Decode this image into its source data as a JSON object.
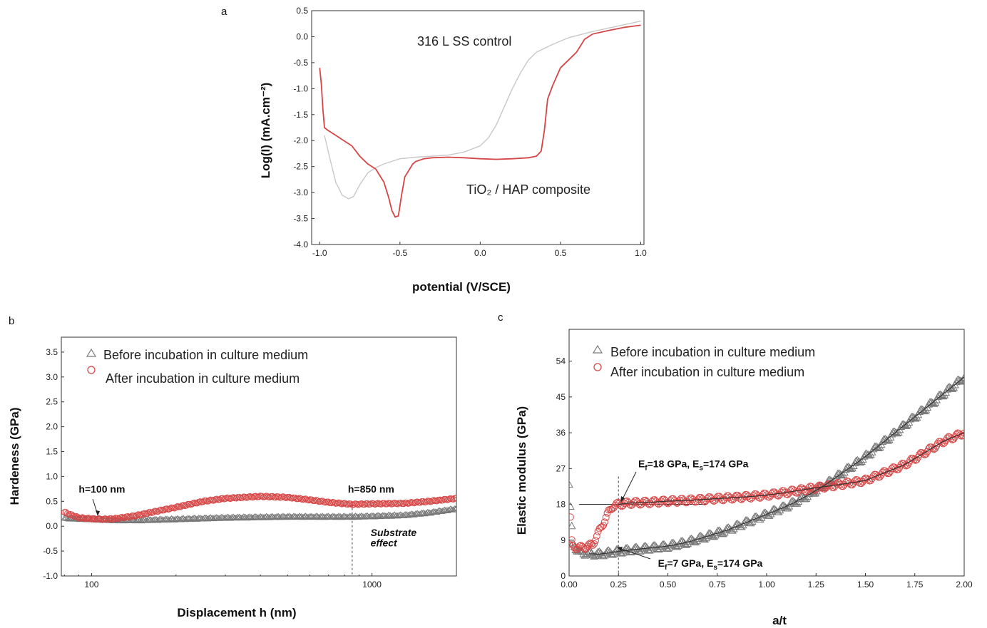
{
  "chart_data": [
    {
      "panel_label": "a",
      "type": "line",
      "xlabel": "potential (V/SCE)",
      "ylabel": "Log(I) (mA.cm⁻²)",
      "xlim": [
        -1.05,
        1.02
      ],
      "ylim": [
        -4.0,
        0.5
      ],
      "xticks": [
        -1.0,
        -0.5,
        0.0,
        0.5,
        1.0
      ],
      "xtick_labels": [
        "-1.0",
        "-0.5",
        "0.0",
        "0.5",
        "1.0"
      ],
      "yticks": [
        -4.0,
        -3.5,
        -3.0,
        -2.5,
        -2.0,
        -1.5,
        -1.0,
        -0.5,
        0.0,
        0.5
      ],
      "ytick_labels": [
        "-4.0",
        "-3.5",
        "-3.0",
        "-2.5",
        "-2.0",
        "-1.5",
        "-1.0",
        "-0.5",
        "0.0",
        "0.5"
      ],
      "annotations": [
        {
          "text": "316 L SS control",
          "x": -0.37,
          "y": -0.05
        },
        {
          "text": "TiO₂ / HAP composite",
          "x": -0.1,
          "y": -2.95
        }
      ],
      "series": [
        {
          "name": "316 L SS control",
          "color": "#c8c8c8",
          "x": [
            -0.97,
            -0.94,
            -0.9,
            -0.86,
            -0.82,
            -0.79,
            -0.75,
            -0.7,
            -0.65,
            -0.6,
            -0.5,
            -0.4,
            -0.3,
            -0.2,
            -0.1,
            0.0,
            0.05,
            0.1,
            0.15,
            0.2,
            0.25,
            0.3,
            0.35,
            0.45,
            0.55,
            0.7,
            0.85,
            1.0
          ],
          "y": [
            -1.9,
            -2.3,
            -2.8,
            -3.05,
            -3.12,
            -3.08,
            -2.85,
            -2.62,
            -2.52,
            -2.45,
            -2.35,
            -2.32,
            -2.3,
            -2.28,
            -2.22,
            -2.1,
            -1.95,
            -1.7,
            -1.35,
            -1.0,
            -0.7,
            -0.45,
            -0.3,
            -0.15,
            -0.02,
            0.1,
            0.2,
            0.3
          ]
        },
        {
          "name": "TiO₂ / HAP composite",
          "color": "#d64545",
          "x": [
            -1.0,
            -0.99,
            -0.98,
            -0.97,
            -0.95,
            -0.9,
            -0.85,
            -0.8,
            -0.75,
            -0.7,
            -0.65,
            -0.6,
            -0.57,
            -0.55,
            -0.53,
            -0.51,
            -0.49,
            -0.47,
            -0.45,
            -0.42,
            -0.4,
            -0.35,
            -0.3,
            -0.2,
            -0.1,
            0.0,
            0.1,
            0.2,
            0.3,
            0.35,
            0.38,
            0.4,
            0.42,
            0.45,
            0.5,
            0.55,
            0.6,
            0.65,
            0.7,
            0.8,
            0.9,
            1.0
          ],
          "y": [
            -0.6,
            -0.9,
            -1.4,
            -1.75,
            -1.8,
            -1.9,
            -2.0,
            -2.1,
            -2.3,
            -2.45,
            -2.55,
            -2.8,
            -3.1,
            -3.35,
            -3.47,
            -3.45,
            -3.05,
            -2.7,
            -2.6,
            -2.45,
            -2.4,
            -2.35,
            -2.33,
            -2.32,
            -2.33,
            -2.35,
            -2.36,
            -2.35,
            -2.33,
            -2.3,
            -2.2,
            -1.8,
            -1.2,
            -0.95,
            -0.6,
            -0.45,
            -0.3,
            -0.05,
            0.05,
            0.12,
            0.18,
            0.22
          ]
        }
      ]
    },
    {
      "panel_label": "b",
      "type": "scatter",
      "xlabel": "Displacement h (nm)",
      "ylabel": "Hardeness (GPa)",
      "xscale": "log",
      "xlim": [
        78,
        2000
      ],
      "ylim": [
        -1.0,
        3.8
      ],
      "xticks": [
        100,
        1000
      ],
      "xtick_labels": [
        "100",
        "1000"
      ],
      "yticks": [
        -1.0,
        -0.5,
        0.0,
        0.5,
        1.0,
        1.5,
        2.0,
        2.5,
        3.0,
        3.5
      ],
      "ytick_labels": [
        "-1.0",
        "-0.5",
        "0.0",
        "0.5",
        "1.0",
        "1.5",
        "2.0",
        "2.5",
        "3.0",
        "3.5"
      ],
      "legend_placement": "top-left",
      "annotations": [
        {
          "text": "h=100 nm",
          "x": 100,
          "y": 0.68,
          "style": "bold"
        },
        {
          "text": "h=850 nm",
          "x": 860,
          "y": 0.68,
          "style": "bold"
        },
        {
          "text": "Substrate",
          "x": 1000,
          "y": -0.2,
          "style": "bold-italic"
        },
        {
          "text": "effect",
          "x": 1000,
          "y": -0.52,
          "style": "bold-italic"
        }
      ],
      "vlines": [
        850
      ],
      "series": [
        {
          "name": "Before incubation in culture medium",
          "marker": "triangle",
          "color": "#777777",
          "x": [
            80,
            90,
            100,
            120,
            150,
            200,
            300,
            500,
            700,
            850,
            1000,
            1300,
            1600,
            2000
          ],
          "y": [
            0.16,
            0.15,
            0.14,
            0.12,
            0.12,
            0.14,
            0.17,
            0.19,
            0.19,
            0.19,
            0.2,
            0.22,
            0.27,
            0.35
          ]
        },
        {
          "name": "After incubation in culture medium",
          "marker": "circle",
          "color": "#d64545",
          "x": [
            80,
            90,
            100,
            110,
            120,
            140,
            170,
            200,
            250,
            300,
            400,
            500,
            600,
            700,
            850,
            1000,
            1300,
            1600,
            2000
          ],
          "y": [
            0.28,
            0.17,
            0.15,
            0.14,
            0.15,
            0.2,
            0.3,
            0.38,
            0.5,
            0.56,
            0.6,
            0.58,
            0.53,
            0.48,
            0.44,
            0.45,
            0.46,
            0.5,
            0.56
          ]
        }
      ]
    },
    {
      "panel_label": "c",
      "type": "scatter",
      "xlabel": "a/t",
      "ylabel": "Elastic modulus (GPa)",
      "xlim": [
        0.0,
        2.0
      ],
      "ylim": [
        0,
        62
      ],
      "xticks": [
        0.0,
        0.25,
        0.5,
        0.75,
        1.0,
        1.25,
        1.5,
        1.75,
        2.0
      ],
      "xtick_labels": [
        "0.00",
        "0.25",
        "0.50",
        "0.75",
        "1.00",
        "1.25",
        "1.50",
        "1.75",
        "2.00"
      ],
      "yticks": [
        0,
        9,
        18,
        27,
        36,
        45,
        54
      ],
      "ytick_labels": [
        "0",
        "9",
        "18",
        "27",
        "36",
        "45",
        "54"
      ],
      "legend_placement": "top-left",
      "vlines": [
        0.25
      ],
      "hlines": [
        18
      ],
      "annotations": [
        {
          "text_main": "E",
          "sub1": "f",
          "text_mid": "=18 GPa, E",
          "sub2": "s",
          "text_end": "=174 GPa",
          "x": 0.35,
          "y": 27.3
        },
        {
          "text_main": "E",
          "sub1": "f",
          "text_mid": "=7 GPa, E",
          "sub2": "s",
          "text_end": "=174 GPa",
          "x": 0.45,
          "y": 2.3
        }
      ],
      "series": [
        {
          "name": "Before incubation in culture medium",
          "marker": "triangle",
          "color": "#777777",
          "x": [
            0.0,
            0.01,
            0.02,
            0.05,
            0.1,
            0.15,
            0.2,
            0.25,
            0.3,
            0.4,
            0.5,
            0.6,
            0.7,
            0.8,
            0.9,
            1.0,
            1.1,
            1.2,
            1.3,
            1.4,
            1.5,
            1.6,
            1.7,
            1.8,
            1.9,
            2.0
          ],
          "y": [
            23,
            14,
            8,
            6,
            5.6,
            5.5,
            5.8,
            6.2,
            6.5,
            7,
            7.5,
            8.5,
            10,
            11.5,
            13.5,
            15.5,
            17.5,
            20,
            23,
            26.5,
            30,
            34,
            38,
            42,
            46,
            50
          ]
        },
        {
          "name": "After incubation in culture medium",
          "marker": "circle",
          "color": "#d64545",
          "x": [
            0.0,
            0.005,
            0.01,
            0.02,
            0.05,
            0.1,
            0.12,
            0.15,
            0.18,
            0.2,
            0.22,
            0.25,
            0.3,
            0.4,
            0.5,
            0.6,
            0.7,
            0.8,
            0.9,
            1.0,
            1.1,
            1.2,
            1.3,
            1.4,
            1.5,
            1.6,
            1.7,
            1.8,
            1.9,
            2.0
          ],
          "y": [
            8,
            17,
            9,
            7.5,
            7,
            7.5,
            8,
            11,
            14,
            16,
            17.5,
            18,
            18.3,
            18.5,
            18.8,
            19,
            19.3,
            19.6,
            19.9,
            20.3,
            21,
            21.8,
            22.5,
            23.2,
            24,
            26,
            28,
            31,
            34,
            36
          ]
        }
      ]
    }
  ]
}
